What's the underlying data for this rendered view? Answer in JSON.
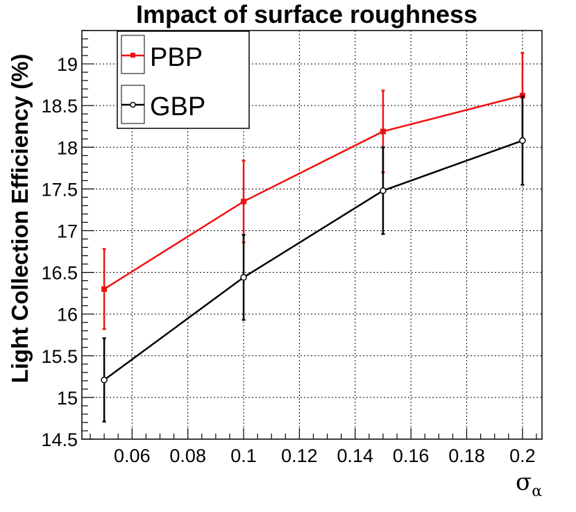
{
  "chart_data": {
    "type": "line",
    "title": "Impact of surface roughness",
    "xlabel_main": "σ",
    "xlabel_sub": "α",
    "ylabel": "Light Collection Efficiency (%)",
    "xlim": [
      0.042,
      0.207
    ],
    "ylim": [
      14.5,
      19.4
    ],
    "x_ticks": [
      0.06,
      0.08,
      0.1,
      0.12,
      0.14,
      0.16,
      0.18,
      0.2
    ],
    "x_tick_labels": [
      "0.06",
      "0.08",
      "0.1",
      "0.12",
      "0.14",
      "0.16",
      "0.18",
      "0.2"
    ],
    "y_ticks": [
      14.5,
      15,
      15.5,
      16,
      16.5,
      17,
      17.5,
      18,
      18.5,
      19
    ],
    "y_tick_labels": [
      "14.5",
      "15",
      "15.5",
      "16",
      "16.5",
      "17",
      "17.5",
      "18",
      "18.5",
      "19"
    ],
    "grid": true,
    "legend_position": "top-left",
    "series": [
      {
        "name": "PBP",
        "color": "#ee1111",
        "marker": "filled-square",
        "x": [
          0.05,
          0.1,
          0.15,
          0.2
        ],
        "y": [
          16.3,
          17.35,
          18.19,
          18.62
        ],
        "yerr": [
          0.48,
          0.49,
          0.49,
          0.51
        ]
      },
      {
        "name": "GBP",
        "color": "#000000",
        "marker": "open-circle",
        "x": [
          0.05,
          0.1,
          0.15,
          0.2
        ],
        "y": [
          15.21,
          16.44,
          17.48,
          18.08
        ],
        "yerr": [
          0.5,
          0.51,
          0.52,
          0.53
        ]
      }
    ]
  }
}
